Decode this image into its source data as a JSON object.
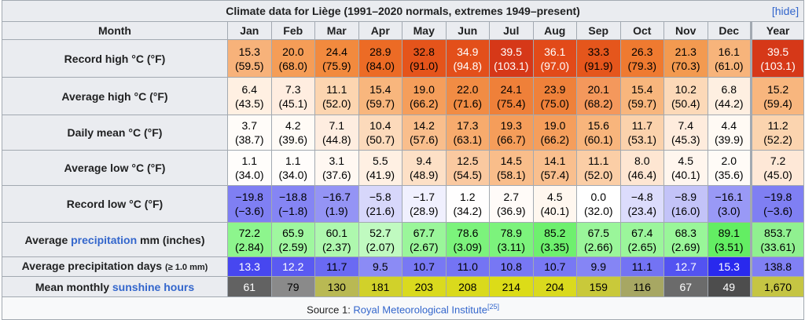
{
  "title": "Climate data for Liège (1991–2020 normals, extremes 1949–present)",
  "hide_link": "[hide]",
  "header": [
    "Month",
    "Jan",
    "Feb",
    "Mar",
    "Apr",
    "May",
    "Jun",
    "Jul",
    "Aug",
    "Sep",
    "Oct",
    "Nov",
    "Dec",
    "Year"
  ],
  "rows": [
    {
      "label": [
        "Record high °C (°F)"
      ],
      "cells": [
        [
          "15.3",
          "(59.5)"
        ],
        [
          "20.0",
          "(68.0)"
        ],
        [
          "24.4",
          "(75.9)"
        ],
        [
          "28.9",
          "(84.0)"
        ],
        [
          "32.8",
          "(91.0)"
        ],
        [
          "34.9",
          "(94.8)"
        ],
        [
          "39.5",
          "(103.1)"
        ],
        [
          "36.1",
          "(97.0)"
        ],
        [
          "33.3",
          "(91.9)"
        ],
        [
          "26.3",
          "(79.3)"
        ],
        [
          "21.3",
          "(70.3)"
        ],
        [
          "16.1",
          "(61.0)"
        ],
        [
          "39.5",
          "(103.1)"
        ]
      ],
      "colors": [
        "#f7b27a",
        "#f59d57",
        "#f28a3e",
        "#ec6b25",
        "#e5541b",
        "#e34f1a",
        "#d63818",
        "#e24a19",
        "#e5561c",
        "#ef7a30",
        "#f39a50",
        "#f7b47b",
        "#d63818"
      ]
    },
    {
      "label": [
        "Average high °C (°F)"
      ],
      "cells": [
        [
          "6.4",
          "(43.5)"
        ],
        [
          "7.3",
          "(45.1)"
        ],
        [
          "11.1",
          "(52.0)"
        ],
        [
          "15.4",
          "(59.7)"
        ],
        [
          "19.0",
          "(66.2)"
        ],
        [
          "22.0",
          "(71.6)"
        ],
        [
          "24.1",
          "(75.4)"
        ],
        [
          "23.9",
          "(75.0)"
        ],
        [
          "20.1",
          "(68.2)"
        ],
        [
          "15.4",
          "(59.7)"
        ],
        [
          "10.2",
          "(50.4)"
        ],
        [
          "6.8",
          "(44.2)"
        ],
        [
          "15.2",
          "(59.4)"
        ]
      ],
      "colors": [
        "#fff0e2",
        "#ffede0",
        "#fcd5b0",
        "#f8b67d",
        "#f59e5b",
        "#f18c44",
        "#ef8039",
        "#ef813a",
        "#f4985c",
        "#f8b67d",
        "#fcd9b8",
        "#feefe1",
        "#f8b67e"
      ]
    },
    {
      "label": [
        "Daily mean °C (°F)"
      ],
      "cells": [
        [
          "3.7",
          "(38.7)"
        ],
        [
          "4.2",
          "(39.6)"
        ],
        [
          "7.1",
          "(44.8)"
        ],
        [
          "10.4",
          "(50.7)"
        ],
        [
          "14.2",
          "(57.6)"
        ],
        [
          "17.3",
          "(63.1)"
        ],
        [
          "19.3",
          "(66.7)"
        ],
        [
          "19.0",
          "(66.2)"
        ],
        [
          "15.6",
          "(60.1)"
        ],
        [
          "11.7",
          "(53.1)"
        ],
        [
          "7.4",
          "(45.3)"
        ],
        [
          "4.4",
          "(39.9)"
        ],
        [
          "11.2",
          "(52.2)"
        ]
      ],
      "colors": [
        "#fffcf9",
        "#fffbf6",
        "#feede0",
        "#fcdabb",
        "#f9be8c",
        "#f7ab6d",
        "#f59d5a",
        "#f59e5c",
        "#f8b57c",
        "#fbd2ac",
        "#feecdd",
        "#fffaf4",
        "#fbd4af"
      ]
    },
    {
      "label": [
        "Average low °C (°F)"
      ],
      "cells": [
        [
          "1.1",
          "(34.0)"
        ],
        [
          "1.1",
          "(34.0)"
        ],
        [
          "3.1",
          "(37.6)"
        ],
        [
          "5.5",
          "(41.9)"
        ],
        [
          "9.4",
          "(48.9)"
        ],
        [
          "12.5",
          "(54.5)"
        ],
        [
          "14.5",
          "(58.1)"
        ],
        [
          "14.1",
          "(57.4)"
        ],
        [
          "11.1",
          "(52.0)"
        ],
        [
          "8.0",
          "(46.4)"
        ],
        [
          "4.5",
          "(40.1)"
        ],
        [
          "2.0",
          "(35.6)"
        ],
        [
          "7.2",
          "(45.0)"
        ]
      ],
      "colors": [
        "#fffdfb",
        "#fffdfb",
        "#fff8f2",
        "#fff0e3",
        "#fde0c6",
        "#fac9a0",
        "#f9bd8a",
        "#f9bf8e",
        "#fbcea6",
        "#fee6d2",
        "#fff6ee",
        "#fffbf7",
        "#fee8d7"
      ]
    },
    {
      "label": [
        "Record low °C (°F)"
      ],
      "cells": [
        [
          "−19.8",
          "(−3.6)"
        ],
        [
          "−18.8",
          "(−1.8)"
        ],
        [
          "−16.7",
          "(1.9)"
        ],
        [
          "−5.8",
          "(21.6)"
        ],
        [
          "−1.7",
          "(28.9)"
        ],
        [
          "1.2",
          "(34.2)"
        ],
        [
          "2.7",
          "(36.9)"
        ],
        [
          "4.5",
          "(40.1)"
        ],
        [
          "0.0",
          "(32.0)"
        ],
        [
          "−4.8",
          "(23.4)"
        ],
        [
          "−8.9",
          "(16.0)"
        ],
        [
          "−16.1",
          "(3.0)"
        ],
        [
          "−19.8",
          "(−3.6)"
        ]
      ],
      "colors": [
        "#7f7ff3",
        "#8585f4",
        "#9494f5",
        "#d7d7fb",
        "#f0f0fe",
        "#fffefe",
        "#fffbf8",
        "#fff7ef",
        "#ffffff",
        "#dcdcfc",
        "#c3c3f8",
        "#9999f6",
        "#7f7ff3"
      ]
    },
    {
      "label": [
        "Average ",
        "precipitation",
        " mm (inches)"
      ],
      "link_index": 1,
      "cells": [
        [
          "72.2",
          "(2.84)"
        ],
        [
          "65.9",
          "(2.59)"
        ],
        [
          "60.1",
          "(2.37)"
        ],
        [
          "52.7",
          "(2.07)"
        ],
        [
          "67.7",
          "(2.67)"
        ],
        [
          "78.6",
          "(3.09)"
        ],
        [
          "78.9",
          "(3.11)"
        ],
        [
          "85.2",
          "(3.35)"
        ],
        [
          "67.5",
          "(2.66)"
        ],
        [
          "67.4",
          "(2.65)"
        ],
        [
          "68.3",
          "(2.69)"
        ],
        [
          "89.1",
          "(3.51)"
        ],
        [
          "853.7",
          "(33.61)"
        ]
      ],
      "colors": [
        "#8df58d",
        "#9ff79f",
        "#aef8ae",
        "#c0fac0",
        "#9af69a",
        "#7cf37c",
        "#7cf37c",
        "#6ef06e",
        "#9af69a",
        "#9bf69b",
        "#99f699",
        "#63ee63",
        "#90f090"
      ]
    },
    {
      "label": [
        "Average precipitation days ",
        "(≥ 1.0 mm)"
      ],
      "small_index": 1,
      "cells": [
        [
          "13.3"
        ],
        [
          "12.2"
        ],
        [
          "11.7"
        ],
        [
          "9.5"
        ],
        [
          "10.7"
        ],
        [
          "11.0"
        ],
        [
          "10.8"
        ],
        [
          "10.7"
        ],
        [
          "9.9"
        ],
        [
          "11.1"
        ],
        [
          "12.7"
        ],
        [
          "15.3"
        ],
        [
          "138.8"
        ]
      ],
      "colors": [
        "#4747f0",
        "#5a5af2",
        "#6a6af3",
        "#8b8bf5",
        "#7878f4",
        "#7474f4",
        "#7777f4",
        "#7878f4",
        "#8585f5",
        "#7373f4",
        "#5353f1",
        "#2929ee",
        "#8080f4"
      ]
    },
    {
      "label": [
        "Mean monthly ",
        "sunshine hours"
      ],
      "link_index": 1,
      "cells": [
        [
          "61"
        ],
        [
          "79"
        ],
        [
          "130"
        ],
        [
          "181"
        ],
        [
          "203"
        ],
        [
          "208"
        ],
        [
          "214"
        ],
        [
          "204"
        ],
        [
          "159"
        ],
        [
          "116"
        ],
        [
          "67"
        ],
        [
          "49"
        ],
        [
          "1,670"
        ]
      ],
      "colors": [
        "#626262",
        "#8a8a8a",
        "#b9b953",
        "#d1d12a",
        "#dada1e",
        "#dada1c",
        "#dcdc18",
        "#dada1e",
        "#c9c93a",
        "#a7a763",
        "#6b6b6b",
        "#4d4d4d",
        "#c5c543"
      ]
    }
  ],
  "source": {
    "prefix": "Source 1: ",
    "link": "Royal Meteorological Institute",
    "ref": "[25]"
  }
}
